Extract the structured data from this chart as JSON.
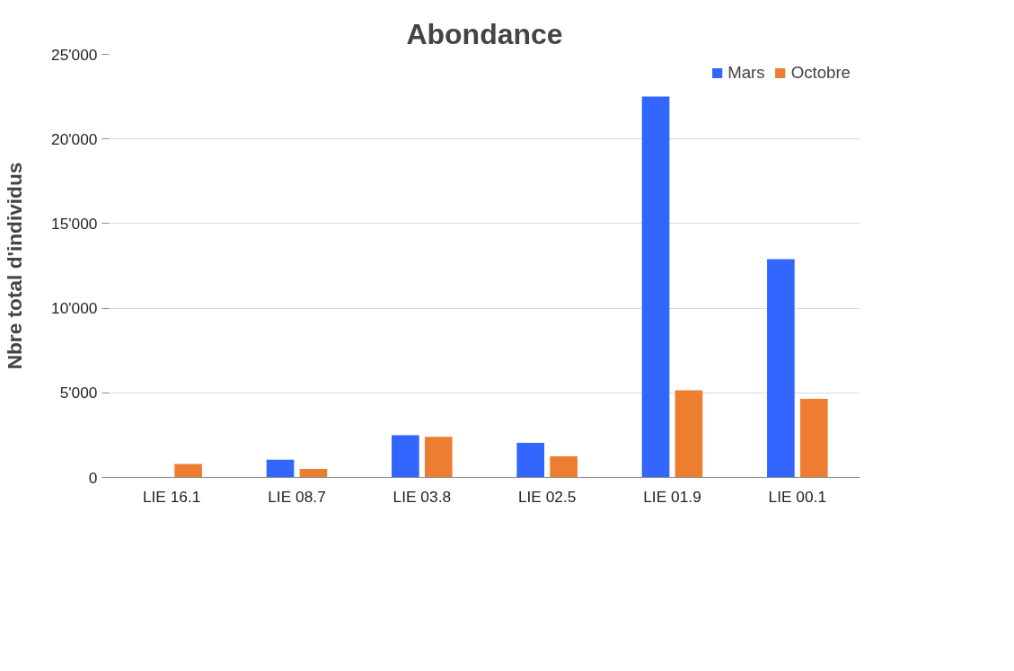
{
  "chart_data": {
    "type": "bar",
    "title": "Abondance",
    "ylabel": "Nbre total d'individus",
    "categories": [
      "LIE 16.1",
      "LIE 08.7",
      "LIE 03.8",
      "LIE 02.5",
      "LIE 01.9",
      "LIE 00.1"
    ],
    "series": [
      {
        "name": "Mars",
        "color": "#3366ff",
        "values": [
          0,
          1050,
          2500,
          2050,
          22500,
          12900
        ]
      },
      {
        "name": "Octobre",
        "color": "#ed7d31",
        "values": [
          800,
          500,
          2400,
          1250,
          5150,
          4650
        ]
      }
    ],
    "ylim": [
      0,
      25000
    ],
    "yticks": [
      0,
      {
        "value": 5000,
        "label": "5'000"
      },
      {
        "value": 10000,
        "label": "10'000"
      },
      {
        "value": 15000,
        "label": "15'000"
      },
      {
        "value": 20000,
        "label": "20'000"
      },
      {
        "value": 25000,
        "label": "25'000"
      }
    ],
    "grid": "y",
    "legend": "top right"
  }
}
